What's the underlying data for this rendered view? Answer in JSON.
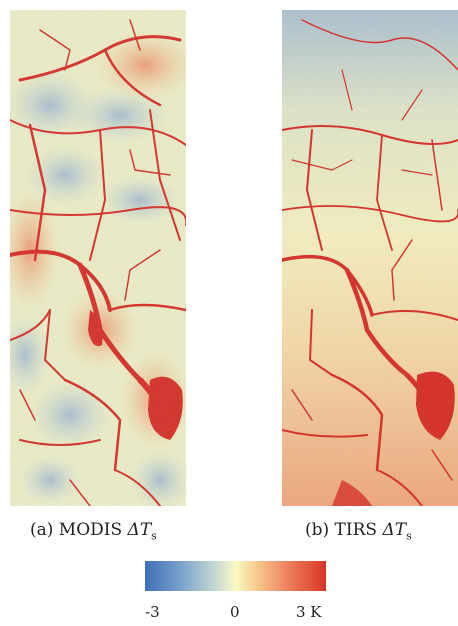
{
  "panels": [
    {
      "id": "a",
      "caption_prefix": "(a) MODIS ",
      "caption_symbol": "ΔT",
      "caption_sub": "s"
    },
    {
      "id": "b",
      "caption_prefix": "(b) TIRS ",
      "caption_symbol": "ΔT",
      "caption_sub": "s"
    }
  ],
  "colorbar": {
    "min_label": "-3",
    "mid_label": "0",
    "max_label": "3 K",
    "colors": [
      "#3e6fb6",
      "#7aa1cb",
      "#c3d6d3",
      "#fbf8c2",
      "#f7c98f",
      "#ef8561",
      "#d73427"
    ]
  },
  "crack_color": "#d7261e"
}
